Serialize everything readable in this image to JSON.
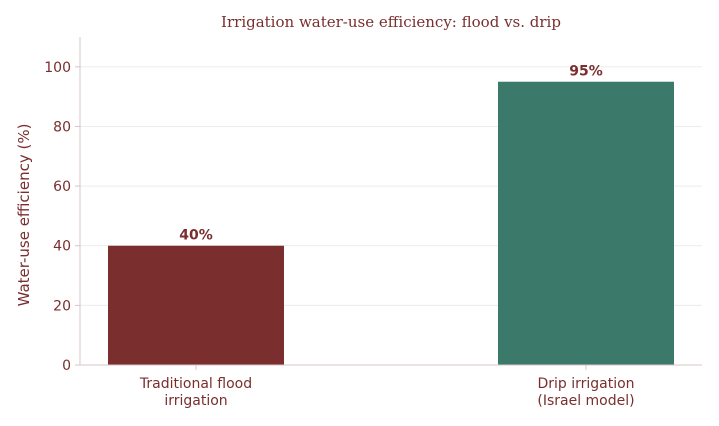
{
  "chart_data": {
    "type": "bar",
    "title": "Irrigation water-use efficiency: flood vs. drip",
    "xlabel": "",
    "ylabel": "Water-use efficiency (%)",
    "ylim": [
      0,
      110
    ],
    "yticks": [
      0,
      20,
      40,
      60,
      80,
      100
    ],
    "categories": [
      [
        "Traditional flood",
        "irrigation"
      ],
      [
        "Drip irrigation",
        "(Israel model)"
      ]
    ],
    "values": [
      40,
      95
    ],
    "data_labels": [
      "40%",
      "95%"
    ],
    "colors": [
      "#7b2e2e",
      "#3b7a6b"
    ],
    "text_color": "#7a2e2e",
    "axis_color": "#d8c4c4",
    "grid": true,
    "grid_axis": "y",
    "legend": "none"
  }
}
